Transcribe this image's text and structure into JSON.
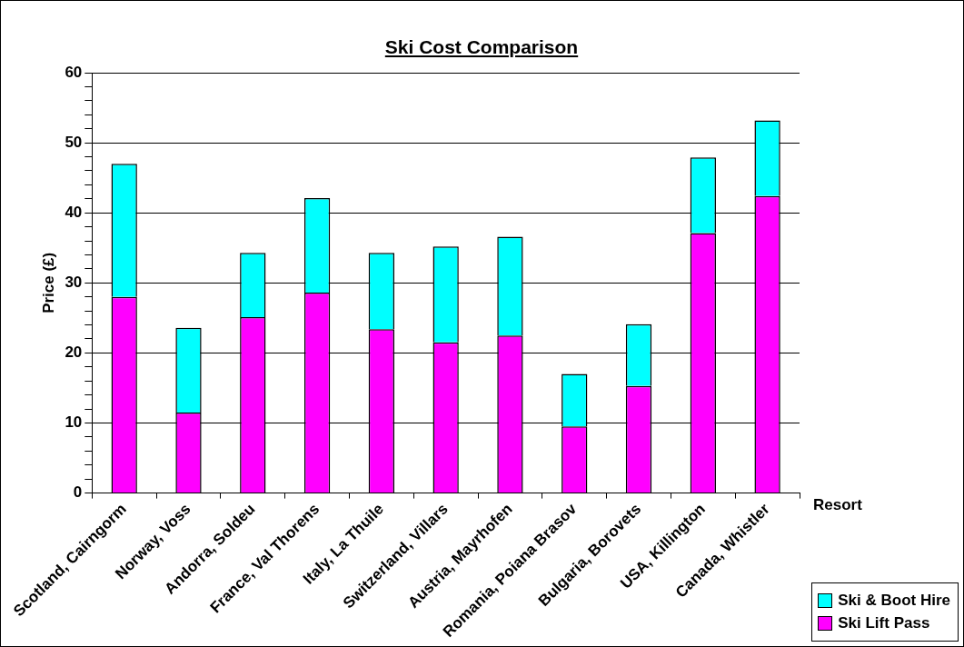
{
  "chart_data": {
    "type": "bar",
    "title": "Ski Cost Comparison",
    "xlabel": "Resort",
    "ylabel": "Price (£)",
    "categories": [
      "Scotland, Cairngorm",
      "Norway, Voss",
      "Andorra, Soldeu",
      "France, Val Thorens",
      "Italy, La Thuile",
      "Switzerland, Villars",
      "Austria, Mayrhofen",
      "Romania, Poiana Brasov",
      "Bulgaria, Borovets",
      "USA, Killington",
      "Canada, Whistler"
    ],
    "series": [
      {
        "name": "Ski Lift Pass",
        "color": "#ff00ff",
        "values": [
          28,
          11.5,
          25.1,
          28.6,
          23.4,
          21.5,
          22.5,
          9.5,
          15.3,
          37.1,
          42.4
        ]
      },
      {
        "name": "Ski & Boot Hire",
        "color": "#00ffff",
        "values": [
          19,
          12.1,
          9.2,
          13.5,
          10.9,
          13.7,
          14.1,
          7.5,
          8.8,
          10.8,
          10.8
        ]
      }
    ],
    "stacked": true,
    "ylim": [
      0,
      60
    ],
    "yticks": [
      0,
      {
        "value": 2,
        "label": null
      },
      {
        "value": 4,
        "label": null
      },
      {
        "value": 6,
        "label": null
      },
      {
        "value": 8,
        "label": null
      },
      10,
      {
        "value": 12,
        "label": null
      },
      {
        "value": 14,
        "label": null
      },
      {
        "value": 16,
        "label": null
      },
      {
        "value": 18,
        "label": null
      },
      20,
      {
        "value": 22,
        "label": null
      },
      {
        "value": 24,
        "label": null
      },
      {
        "value": 26,
        "label": null
      },
      {
        "value": 28,
        "label": null
      },
      30,
      {
        "value": 32,
        "label": null
      },
      {
        "value": 34,
        "label": null
      },
      {
        "value": 36,
        "label": null
      },
      {
        "value": 38,
        "label": null
      },
      40,
      {
        "value": 42,
        "label": null
      },
      {
        "value": 44,
        "label": null
      },
      {
        "value": 46,
        "label": null
      },
      {
        "value": 48,
        "label": null
      },
      50,
      {
        "value": 52,
        "label": null
      },
      {
        "value": 54,
        "label": null
      },
      {
        "value": 56,
        "label": null
      },
      {
        "value": 58,
        "label": null
      },
      60
    ],
    "grid": "y",
    "legend": "bottom right"
  }
}
